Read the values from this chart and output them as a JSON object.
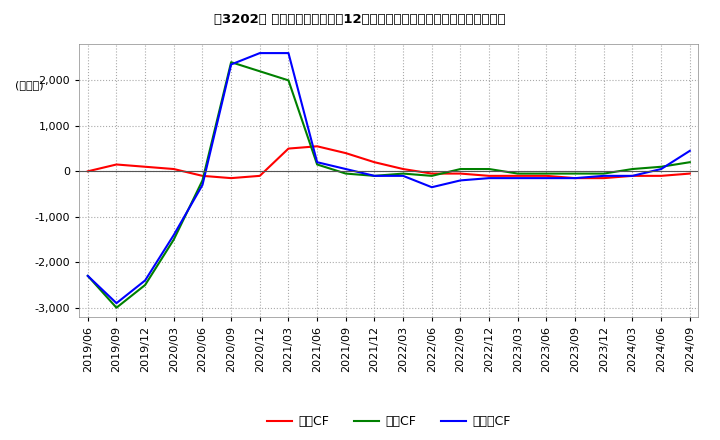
{
  "title": "［3202］ キャッシュフローの12か月移動合計の対前年同期増減額の推移",
  "ylabel": "(百万円)",
  "ylim": [
    -3200,
    2800
  ],
  "yticks": [
    -3000,
    -2000,
    -1000,
    0,
    1000,
    2000
  ],
  "legend_labels": [
    "営業CF",
    "投資CF",
    "フリーCF"
  ],
  "line_colors": [
    "#ff0000",
    "#008000",
    "#0000ff"
  ],
  "background_color": "#ffffff",
  "grid_color": "#aaaaaa",
  "dates": [
    "2019/06",
    "2019/09",
    "2019/12",
    "2020/03",
    "2020/06",
    "2020/09",
    "2020/12",
    "2021/03",
    "2021/06",
    "2021/09",
    "2021/12",
    "2022/03",
    "2022/06",
    "2022/09",
    "2022/12",
    "2023/03",
    "2023/06",
    "2023/09",
    "2023/12",
    "2024/03",
    "2024/06",
    "2024/09"
  ],
  "operating_cf": [
    0,
    150,
    100,
    50,
    -100,
    -150,
    -100,
    500,
    550,
    400,
    200,
    50,
    -50,
    -50,
    -100,
    -100,
    -100,
    -150,
    -150,
    -100,
    -100,
    -50
  ],
  "investing_cf": [
    -2300,
    -3000,
    -2500,
    -1500,
    -200,
    2400,
    2200,
    2000,
    150,
    -50,
    -100,
    -50,
    -100,
    50,
    50,
    -50,
    -50,
    -50,
    -50,
    50,
    100,
    200
  ],
  "free_cf": [
    -2300,
    -2900,
    -2400,
    -1400,
    -300,
    2350,
    2600,
    2600,
    200,
    50,
    -100,
    -100,
    -350,
    -200,
    -150,
    -150,
    -150,
    -150,
    -100,
    -100,
    50,
    450
  ]
}
